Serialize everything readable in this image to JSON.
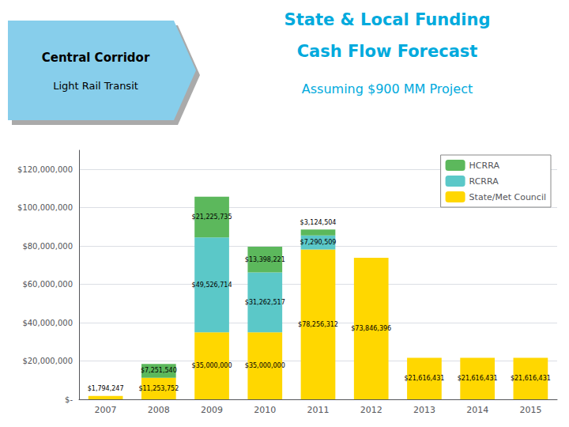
{
  "chart_data": {
    "type": "bar",
    "title": "State & Local Funding\nCash Flow Forecast",
    "subtitle": "Assuming $900 MM Project",
    "annotations": [
      "Central Corridor",
      "Light Rail Transit"
    ],
    "categories": [
      "2007",
      "2008",
      "2009",
      "2010",
      "2011",
      "2012",
      "2013",
      "2014",
      "2015"
    ],
    "series": [
      {
        "name": "State/Met Council",
        "color": "#ffd700",
        "values": [
          1794247,
          11253752,
          35000000,
          35000000,
          78256312,
          73846396,
          21616431,
          21616431,
          21616431
        ],
        "value_labels": [
          "$1,794,247",
          "$11,253,752",
          "$35,000,000",
          "$35,000,000",
          "$78,256,312",
          "$73,846,396",
          "$21,616,431",
          "$21,616,431",
          "$21,616,431"
        ]
      },
      {
        "name": "RCRRA",
        "color": "#5bc8c8",
        "values": [
          0,
          0,
          49526714,
          31262517,
          7290509,
          0,
          0,
          0,
          0
        ],
        "value_labels": [
          null,
          null,
          "$49,526,714",
          "$31,262,517",
          "$7,290,509",
          null,
          null,
          null,
          null
        ]
      },
      {
        "name": "HCRRA",
        "color": "#5cb85c",
        "values": [
          0,
          7251540,
          21225735,
          13398221,
          3124504,
          0,
          0,
          0,
          0
        ],
        "value_labels": [
          null,
          "$7,251,540",
          "$21,225,735",
          "$13,398,221",
          "$3,124,504",
          null,
          null,
          null,
          null
        ]
      }
    ],
    "stacked": true,
    "data_labels": true,
    "ylim": [
      0,
      130000000
    ],
    "yticks": [
      {
        "value": 0,
        "label": "$-"
      },
      {
        "value": 20000000,
        "label": "$20,000,000"
      },
      {
        "value": 40000000,
        "label": "$40,000,000"
      },
      {
        "value": 60000000,
        "label": "$60,000,000"
      },
      {
        "value": 80000000,
        "label": "$80,000,000"
      },
      {
        "value": 100000000,
        "label": "$100,000,000"
      },
      {
        "value": 120000000,
        "label": "$120,000,000"
      }
    ],
    "grid": true,
    "legend": "upper right"
  }
}
